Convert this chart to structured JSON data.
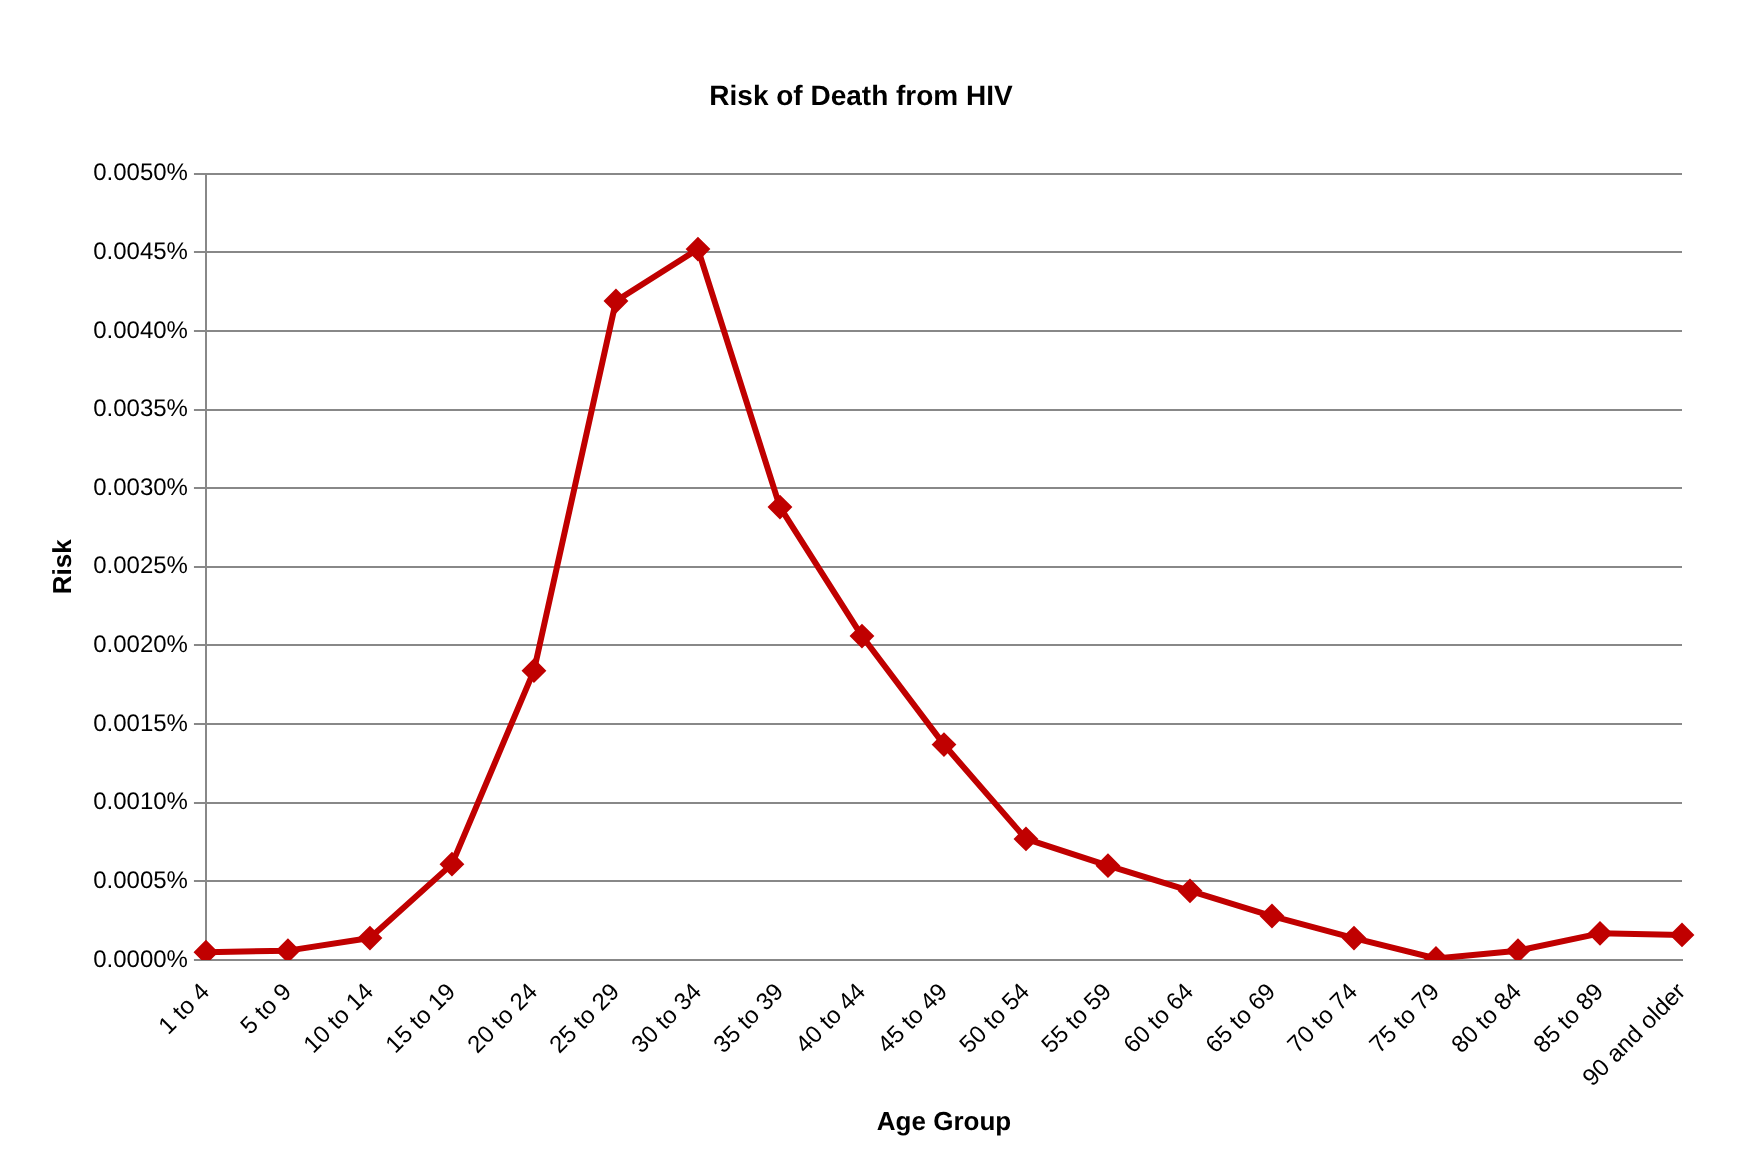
{
  "chart_data": {
    "type": "line",
    "title": "Risk of Death from HIV",
    "xlabel": "Age Group",
    "ylabel": "Risk",
    "categories": [
      "1 to 4",
      "5 to 9",
      "10 to 14",
      "15 to 19",
      "20 to 24",
      "25 to 29",
      "30 to 34",
      "35 to 39",
      "40 to 44",
      "45 to 49",
      "50 to 54",
      "55 to 59",
      "60 to 64",
      "65 to 69",
      "70 to 74",
      "75 to 79",
      "80 to 84",
      "85 to 89",
      "90 and older"
    ],
    "series": [
      {
        "color": "#c00000",
        "values": [
          5e-05,
          6e-05,
          0.00014,
          0.00061,
          0.00184,
          0.00419,
          0.00452,
          0.00288,
          0.00206,
          0.00137,
          0.00077,
          0.0006,
          0.00044,
          0.00028,
          0.00014,
          1e-05,
          6e-05,
          0.00017,
          0.00016
        ]
      }
    ],
    "ylim": [
      0,
      0.005
    ],
    "yticks": [
      {
        "value": 0,
        "label": "0.0000%"
      },
      {
        "value": 0.0005,
        "label": "0.0005%"
      },
      {
        "value": 0.001,
        "label": "0.0010%"
      },
      {
        "value": 0.0015,
        "label": "0.0015%"
      },
      {
        "value": 0.002,
        "label": "0.0020%"
      },
      {
        "value": 0.0025,
        "label": "0.0025%"
      },
      {
        "value": 0.003,
        "label": "0.0030%"
      },
      {
        "value": 0.0035,
        "label": "0.0035%"
      },
      {
        "value": 0.004,
        "label": "0.0040%"
      },
      {
        "value": 0.0045,
        "label": "0.0045%"
      },
      {
        "value": 0.005,
        "label": "0.0050%"
      }
    ],
    "grid": "y",
    "legend": false,
    "marker": "diamond",
    "line_style": "solid"
  }
}
